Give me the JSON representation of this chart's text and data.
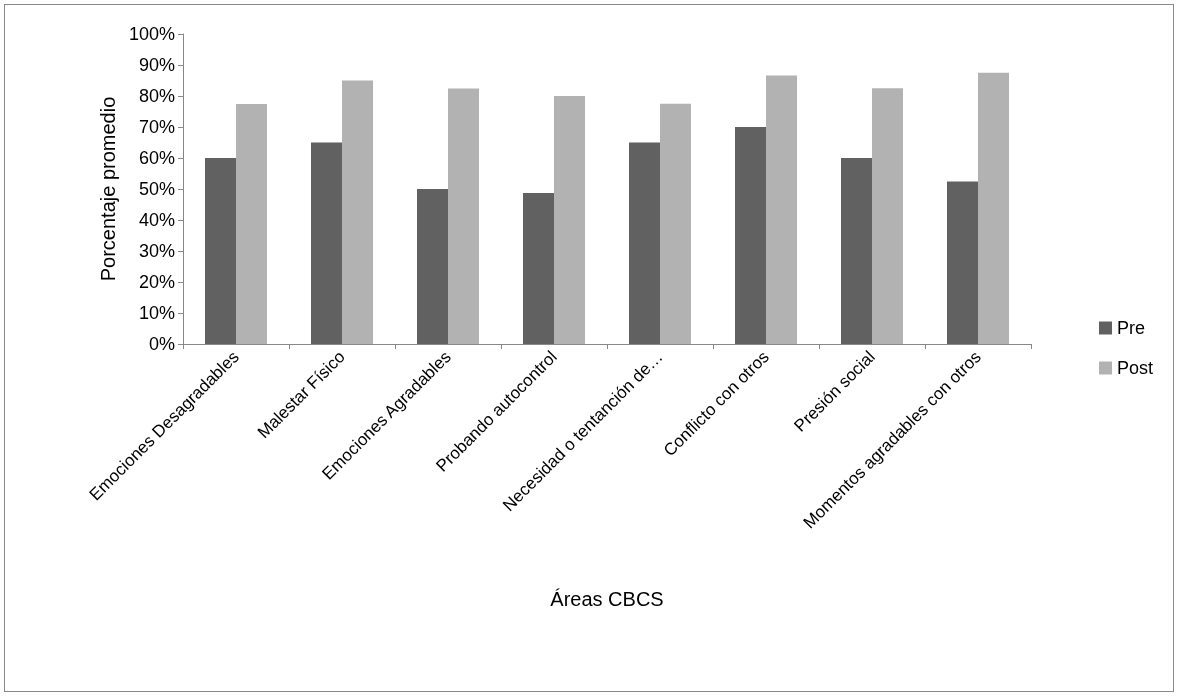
{
  "chart_data": {
    "type": "bar",
    "xlabel": "Áreas CBCS",
    "ylabel": "Porcentaje promedio",
    "categories": [
      "Emociones Desagradables",
      "Malestar Físico",
      "Emociones Agradables",
      "Probando autocontrol",
      "Necesidad o tentanción de…",
      "Conflicto con otros",
      "Presión social",
      "Momentos agradables con otros"
    ],
    "series": [
      {
        "name": "Pre",
        "color": "#616161",
        "values": [
          60,
          65,
          50,
          48.7,
          65,
          70,
          60,
          52.4
        ]
      },
      {
        "name": "Post",
        "color": "#b2b2b2",
        "values": [
          77.4,
          85,
          82.4,
          80,
          77.5,
          86.6,
          82.5,
          87.5
        ]
      }
    ],
    "ylim": [
      0,
      100
    ],
    "yticks": [
      {
        "value": 0,
        "label": "0%"
      },
      {
        "value": 10,
        "label": "10%"
      },
      {
        "value": 20,
        "label": "20%"
      },
      {
        "value": 30,
        "label": "30%"
      },
      {
        "value": 40,
        "label": "40%"
      },
      {
        "value": 50,
        "label": "50%"
      },
      {
        "value": 60,
        "label": "60%"
      },
      {
        "value": 70,
        "label": "70%"
      },
      {
        "value": 80,
        "label": "80%"
      },
      {
        "value": 90,
        "label": "90%"
      },
      {
        "value": 100,
        "label": "100%"
      }
    ],
    "grid": false,
    "legend": "right"
  }
}
